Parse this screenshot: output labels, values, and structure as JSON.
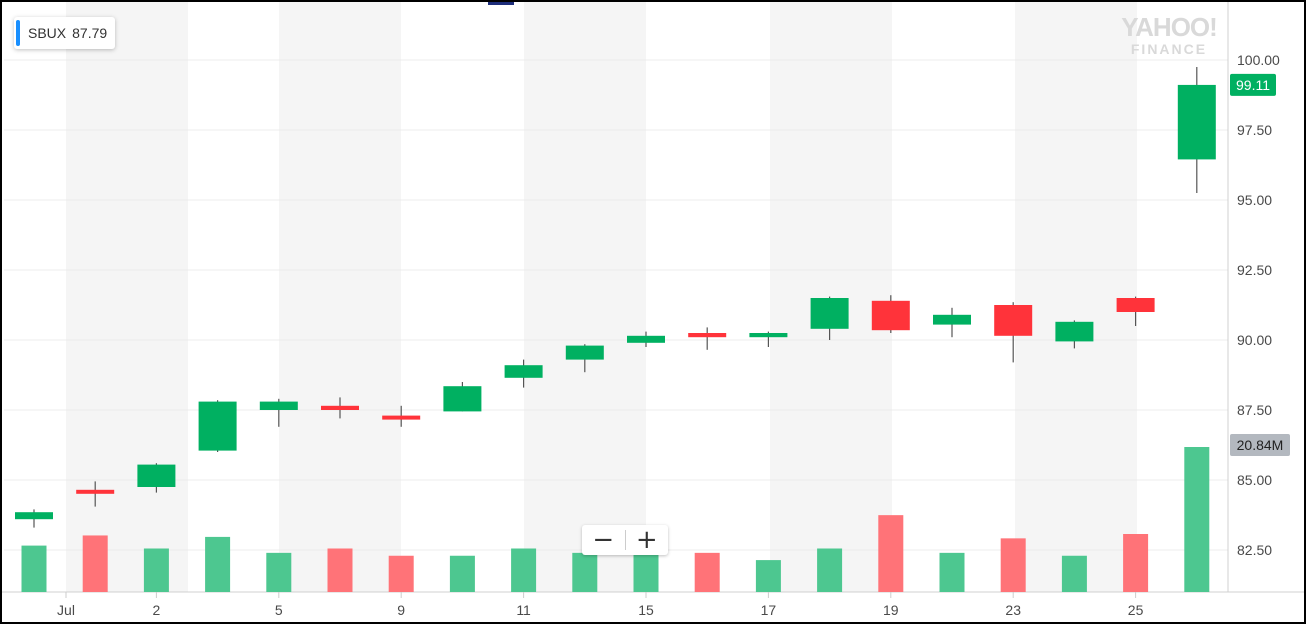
{
  "ticker": {
    "symbol": "SBUX",
    "price": "87.79"
  },
  "logo": {
    "line1": "YAHOO!",
    "line2": "FINANCE"
  },
  "zoom": {
    "minus": "−",
    "plus": "+"
  },
  "colors": {
    "up": "#00b061",
    "down": "#ff333a",
    "vol_up": "#4dc790",
    "vol_down": "#ff7378",
    "accent": "#188fff"
  },
  "chart_data": {
    "type": "candlestick",
    "x_ticks": [
      "Jul",
      "2",
      "5",
      "9",
      "11",
      "15",
      "17",
      "19",
      "23",
      "25"
    ],
    "y_ticks": [
      "100.00",
      "97.50",
      "95.00",
      "92.50",
      "90.00",
      "87.50",
      "85.00",
      "82.50"
    ],
    "ylim": [
      80.8,
      101.5
    ],
    "last_price_label": "99.11",
    "volume_label": "20.84M",
    "candles": [
      {
        "open": 83.6,
        "close": 83.85,
        "high": 83.95,
        "low": 83.3,
        "volume": 0.32
      },
      {
        "open": 84.65,
        "close": 84.55,
        "high": 84.95,
        "low": 84.05,
        "volume": 0.39
      },
      {
        "open": 84.75,
        "close": 85.55,
        "high": 85.6,
        "low": 84.55,
        "volume": 0.3
      },
      {
        "open": 86.05,
        "close": 87.8,
        "high": 87.85,
        "low": 86.0,
        "volume": 0.38
      },
      {
        "open": 87.5,
        "close": 87.8,
        "high": 87.9,
        "low": 86.9,
        "volume": 0.27
      },
      {
        "open": 87.65,
        "close": 87.5,
        "high": 87.95,
        "low": 87.2,
        "volume": 0.3
      },
      {
        "open": 87.3,
        "close": 87.2,
        "high": 87.65,
        "low": 86.9,
        "volume": 0.25
      },
      {
        "open": 87.45,
        "close": 88.35,
        "high": 88.5,
        "low": 87.45,
        "volume": 0.25
      },
      {
        "open": 88.65,
        "close": 89.1,
        "high": 89.3,
        "low": 88.3,
        "volume": 0.3
      },
      {
        "open": 89.3,
        "close": 89.8,
        "high": 89.85,
        "low": 88.85,
        "volume": 0.27
      },
      {
        "open": 89.9,
        "close": 90.15,
        "high": 90.3,
        "low": 89.75,
        "volume": 0.27
      },
      {
        "open": 90.25,
        "close": 90.1,
        "high": 90.45,
        "low": 89.65,
        "volume": 0.27
      },
      {
        "open": 90.1,
        "close": 90.25,
        "high": 90.3,
        "low": 89.75,
        "volume": 0.22
      },
      {
        "open": 90.4,
        "close": 91.5,
        "high": 91.55,
        "low": 90.0,
        "volume": 0.3
      },
      {
        "open": 91.4,
        "close": 90.35,
        "high": 91.6,
        "low": 90.25,
        "volume": 0.53
      },
      {
        "open": 90.55,
        "close": 90.9,
        "high": 91.15,
        "low": 90.1,
        "volume": 0.27
      },
      {
        "open": 91.25,
        "close": 90.15,
        "high": 91.35,
        "low": 89.2,
        "volume": 0.37
      },
      {
        "open": 89.95,
        "close": 90.65,
        "high": 90.7,
        "low": 89.7,
        "volume": 0.25
      },
      {
        "open": 91.5,
        "close": 91.0,
        "high": 91.55,
        "low": 90.5,
        "volume": 0.4
      },
      {
        "open": 96.45,
        "close": 99.11,
        "high": 99.75,
        "low": 95.25,
        "volume": 1.0
      }
    ],
    "grid": true
  }
}
